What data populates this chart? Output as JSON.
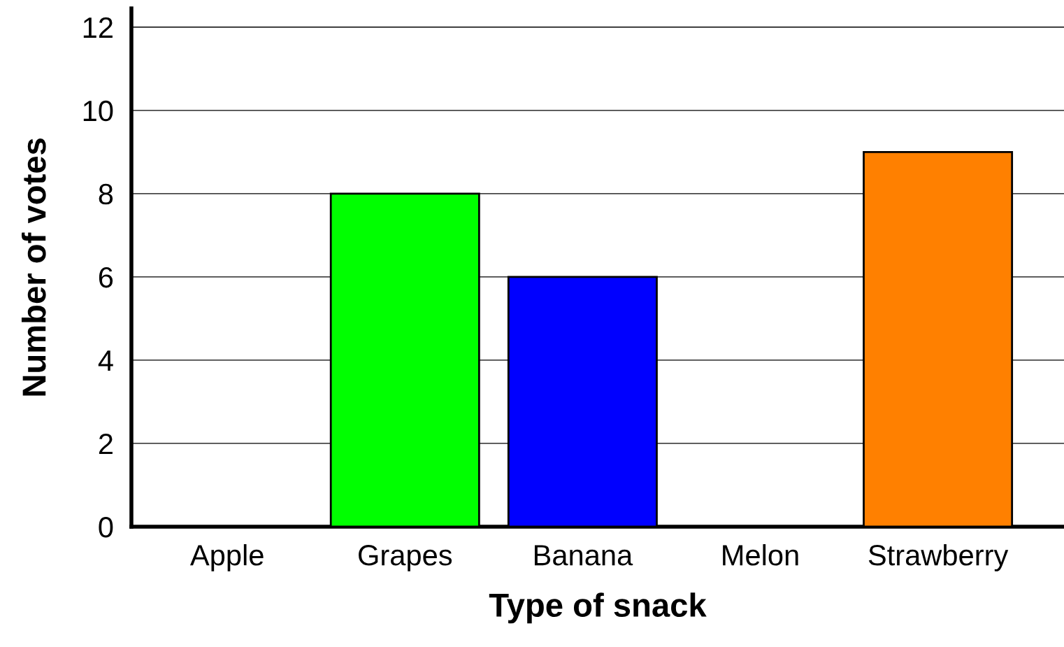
{
  "chart_data": {
    "type": "bar",
    "xlabel": "Type of snack",
    "ylabel": "Number of votes",
    "categories": [
      "Apple",
      "Grapes",
      "Banana",
      "Melon",
      "Strawberry"
    ],
    "values": [
      null,
      8,
      6,
      null,
      9
    ],
    "colors": [
      "#ffffff",
      "#00ff00",
      "#0000ff",
      "#ffffff",
      "#ff8000"
    ],
    "ylim": [
      0,
      12.45
    ],
    "yticks": [
      0,
      2,
      4,
      6,
      8,
      10,
      12
    ],
    "grid": "y",
    "legend": false
  }
}
